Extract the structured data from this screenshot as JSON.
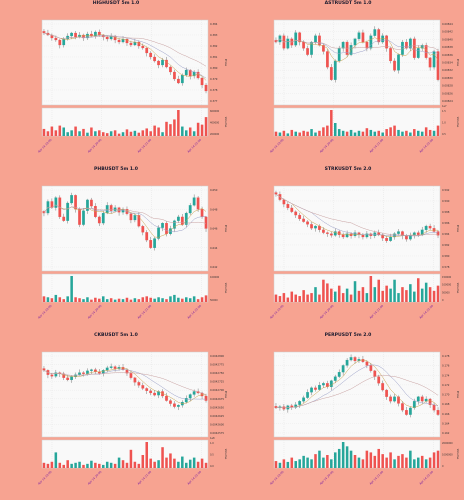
{
  "colors": {
    "background": "#f7a391",
    "axes_bg": "#f9f9f9",
    "up": "#26a69a",
    "down": "#ef5350",
    "wick": "#555555",
    "ma_lines": [
      "#c9a24b",
      "#9aa0c8",
      "#c7a0a0"
    ],
    "tick_label": "#7a1fa2"
  },
  "chart_data": [
    {
      "type": "candlestick",
      "title": "HIGHUSDT 5m 1.0",
      "ylabel": "Price",
      "volume_label": "Volume",
      "ylim": [
        0.376,
        0.3845
      ],
      "y_ticks": [
        "0.384",
        "0.383",
        "0.382",
        "0.381",
        "0.380",
        "0.379",
        "0.378",
        "0.377"
      ],
      "vol_ticks": [
        "600000",
        "400000",
        "200000"
      ],
      "x_ticks": [
        "Apr 14 19:00",
        "Apr 14 20:00",
        "Apr 14 21:00",
        "Apr 14 22:00"
      ],
      "close": [
        0.3832,
        0.383,
        0.3827,
        0.3825,
        0.382,
        0.3826,
        0.3829,
        0.3832,
        0.3828,
        0.383,
        0.3827,
        0.3831,
        0.3829,
        0.3833,
        0.383,
        0.3828,
        0.3826,
        0.3829,
        0.3825,
        0.3823,
        0.3826,
        0.3822,
        0.382,
        0.3823,
        0.3819,
        0.3817,
        0.3812,
        0.3808,
        0.3804,
        0.38,
        0.3805,
        0.3798,
        0.3793,
        0.3786,
        0.3782,
        0.379,
        0.3795,
        0.3789,
        0.3793,
        0.3787,
        0.378,
        0.3774
      ],
      "volume": [
        0.15,
        0.1,
        0.2,
        0.12,
        0.22,
        0.18,
        0.08,
        0.12,
        0.2,
        0.1,
        0.15,
        0.07,
        0.18,
        0.1,
        0.12,
        0.08,
        0.06,
        0.1,
        0.12,
        0.05,
        0.08,
        0.14,
        0.09,
        0.11,
        0.07,
        0.12,
        0.16,
        0.1,
        0.22,
        0.18,
        0.08,
        0.3,
        0.25,
        0.35,
        0.55,
        0.2,
        0.12,
        0.18,
        0.1,
        0.28,
        0.24,
        0.4
      ]
    },
    {
      "type": "candlestick",
      "title": "ASTRUSDT 5m 1.0",
      "ylabel": "Price",
      "volume_label": "Volume",
      "ylim": [
        0.00818,
        0.00845
      ],
      "y_ticks": [
        "0.00844",
        "0.00842",
        "0.00840",
        "0.00838",
        "0.00836",
        "0.00834",
        "0.00832",
        "0.00830",
        "0.00828",
        "0.00826",
        "0.00824"
      ],
      "vol_ticks": [
        "1.5",
        "1.0",
        "0.5"
      ],
      "vol_multiplier": "1e7",
      "x_ticks": [
        "Apr 14 19:00",
        "Apr 14 20:00",
        "Apr 14 21:00",
        "Apr 14 22:00"
      ],
      "close": [
        0.00838,
        0.0084,
        0.00836,
        0.00839,
        0.00837,
        0.00841,
        0.00838,
        0.00836,
        0.00834,
        0.00838,
        0.0084,
        0.00837,
        0.00835,
        0.0083,
        0.00826,
        0.00832,
        0.00836,
        0.00838,
        0.00834,
        0.00837,
        0.00839,
        0.00841,
        0.00838,
        0.00836,
        0.0084,
        0.00842,
        0.00838,
        0.0084,
        0.00836,
        0.00832,
        0.00829,
        0.00834,
        0.00838,
        0.00836,
        0.00839,
        0.00833,
        0.00836,
        0.00837,
        0.00833,
        0.0083,
        0.00835,
        0.00826
      ],
      "volume": [
        0.05,
        0.04,
        0.06,
        0.03,
        0.07,
        0.05,
        0.04,
        0.06,
        0.05,
        0.08,
        0.04,
        0.06,
        0.1,
        0.12,
        0.3,
        0.15,
        0.08,
        0.06,
        0.05,
        0.07,
        0.04,
        0.06,
        0.05,
        0.09,
        0.07,
        0.05,
        0.06,
        0.04,
        0.08,
        0.1,
        0.12,
        0.07,
        0.05,
        0.06,
        0.04,
        0.08,
        0.06,
        0.05,
        0.1,
        0.07,
        0.06,
        0.12
      ]
    },
    {
      "type": "candlestick",
      "title": "PHBUSDT 5m 1.0",
      "ylabel": "Price",
      "volume_label": "Volume",
      "ylim": [
        0.64,
        0.651
      ],
      "y_ticks": [
        "0.650",
        "0.648",
        "0.646",
        "0.644",
        "0.642"
      ],
      "vol_ticks": [
        "100000",
        "50000"
      ],
      "x_ticks": [
        "Apr 14 19:00",
        "Apr 14 20:00",
        "Apr 14 21:00",
        "Apr 14 22:00"
      ],
      "close": [
        0.6475,
        0.649,
        0.6482,
        0.6495,
        0.647,
        0.6465,
        0.6488,
        0.6498,
        0.648,
        0.646,
        0.6478,
        0.6492,
        0.6484,
        0.647,
        0.6462,
        0.6475,
        0.6485,
        0.6478,
        0.6482,
        0.6476,
        0.648,
        0.6474,
        0.6466,
        0.6472,
        0.6458,
        0.645,
        0.644,
        0.643,
        0.6442,
        0.6456,
        0.6462,
        0.6448,
        0.6455,
        0.6465,
        0.647,
        0.646,
        0.6475,
        0.6485,
        0.6495,
        0.648,
        0.647,
        0.6455
      ],
      "volume": [
        0.12,
        0.1,
        0.08,
        0.15,
        0.1,
        0.06,
        0.12,
        0.55,
        0.1,
        0.08,
        0.06,
        0.1,
        0.05,
        0.09,
        0.07,
        0.12,
        0.06,
        0.08,
        0.05,
        0.07,
        0.06,
        0.09,
        0.05,
        0.08,
        0.06,
        0.1,
        0.12,
        0.09,
        0.07,
        0.1,
        0.08,
        0.06,
        0.12,
        0.15,
        0.09,
        0.07,
        0.1,
        0.08,
        0.12,
        0.06,
        0.1,
        0.14
      ]
    },
    {
      "type": "candlestick",
      "title": "STRKUSDT 5m 2.0",
      "ylabel": "Price",
      "volume_label": "Volume",
      "ylim": [
        0.577,
        0.5925
      ],
      "y_ticks": [
        "0.592",
        "0.590",
        "0.588",
        "0.586",
        "0.584",
        "0.582",
        "0.580",
        "0.578"
      ],
      "vol_ticks": [
        "150000",
        "100000",
        "50000",
        "0"
      ],
      "x_ticks": [
        "Apr 14 19:00",
        "Apr 14 20:00",
        "Apr 14 21:00",
        "Apr 14 22:00"
      ],
      "close": [
        0.591,
        0.59,
        0.5892,
        0.5885,
        0.5878,
        0.5872,
        0.5865,
        0.586,
        0.5855,
        0.5848,
        0.5852,
        0.5845,
        0.584,
        0.5838,
        0.5835,
        0.5842,
        0.5836,
        0.5832,
        0.5838,
        0.5834,
        0.584,
        0.5836,
        0.5832,
        0.5838,
        0.5834,
        0.584,
        0.5836,
        0.583,
        0.5825,
        0.5832,
        0.5838,
        0.5842,
        0.5834,
        0.5828,
        0.5835,
        0.584,
        0.5836,
        0.5845,
        0.5852,
        0.5848,
        0.5842,
        0.5835
      ],
      "volume": [
        0.1,
        0.08,
        0.12,
        0.06,
        0.14,
        0.1,
        0.08,
        0.16,
        0.1,
        0.12,
        0.2,
        0.1,
        0.3,
        0.25,
        0.18,
        0.14,
        0.22,
        0.12,
        0.18,
        0.1,
        0.28,
        0.15,
        0.2,
        0.12,
        0.35,
        0.2,
        0.3,
        0.15,
        0.22,
        0.18,
        0.3,
        0.12,
        0.2,
        0.16,
        0.24,
        0.14,
        0.32,
        0.18,
        0.26,
        0.2,
        0.15,
        0.22
      ]
    },
    {
      "type": "candlestick",
      "title": "CKBUSDT 5m 1.0",
      "ylabel": "Price",
      "volume_label": "Volume",
      "ylim": [
        0.004254,
        0.004282
      ],
      "y_ticks": [
        "0.0042800",
        "0.0042775",
        "0.0042750",
        "0.0042725",
        "0.0042700",
        "0.0042675",
        "0.0042650",
        "0.0042625",
        "0.0042600",
        "0.0042575"
      ],
      "vol_ticks": [
        "1.0",
        "0.5",
        "0.0"
      ],
      "vol_multiplier": "1e8",
      "x_ticks": [
        "Apr 14 19:00",
        "Apr 14 20:00",
        "Apr 14 21:00",
        "Apr 14 22:00"
      ],
      "close": [
        0.004276,
        0.0042745,
        0.004274,
        0.0042752,
        0.0042748,
        0.0042735,
        0.0042728,
        0.0042738,
        0.0042745,
        0.0042752,
        0.0042748,
        0.0042758,
        0.0042762,
        0.0042755,
        0.004275,
        0.004276,
        0.0042768,
        0.0042772,
        0.0042765,
        0.004277,
        0.0042762,
        0.004275,
        0.0042735,
        0.004272,
        0.004271,
        0.00427,
        0.0042692,
        0.0042685,
        0.0042678,
        0.004269,
        0.0042675,
        0.004266,
        0.004265,
        0.004264,
        0.0042645,
        0.0042655,
        0.0042668,
        0.004268,
        0.004269,
        0.0042685,
        0.0042675,
        0.004266
      ],
      "volume": [
        0.1,
        0.08,
        0.12,
        0.3,
        0.1,
        0.06,
        0.15,
        0.08,
        0.1,
        0.12,
        0.06,
        0.08,
        0.14,
        0.1,
        0.08,
        0.06,
        0.12,
        0.1,
        0.08,
        0.2,
        0.15,
        0.1,
        0.35,
        0.12,
        0.08,
        0.25,
        0.5,
        0.18,
        0.12,
        0.15,
        0.4,
        0.2,
        0.28,
        0.18,
        0.12,
        0.22,
        0.1,
        0.16,
        0.2,
        0.12,
        0.18,
        0.1
      ]
    },
    {
      "type": "candlestick",
      "title": "PERPUSDT 5m 2.0",
      "ylabel": "Price",
      "volume_label": "Volume",
      "ylim": [
        0.16,
        0.179
      ],
      "y_ticks": [
        "0.178",
        "0.176",
        "0.174",
        "0.172",
        "0.170",
        "0.168",
        "0.166",
        "0.164",
        "0.162"
      ],
      "vol_ticks": [
        "2000000",
        "1000000",
        "0"
      ],
      "x_ticks": [
        "Apr 14 19:00",
        "Apr 14 20:00",
        "Apr 14 21:00",
        "Apr 14 22:00"
      ],
      "close": [
        0.1665,
        0.1668,
        0.1662,
        0.167,
        0.1666,
        0.1672,
        0.168,
        0.1688,
        0.17,
        0.171,
        0.1706,
        0.1716,
        0.172,
        0.1712,
        0.1726,
        0.1735,
        0.1745,
        0.176,
        0.1772,
        0.1778,
        0.177,
        0.1774,
        0.1768,
        0.176,
        0.1748,
        0.1735,
        0.172,
        0.1705,
        0.169,
        0.168,
        0.169,
        0.1675,
        0.166,
        0.165,
        0.1665,
        0.168,
        0.169,
        0.168,
        0.1685,
        0.1672,
        0.166,
        0.165
      ],
      "volume": [
        0.08,
        0.06,
        0.1,
        0.07,
        0.12,
        0.08,
        0.1,
        0.14,
        0.12,
        0.1,
        0.16,
        0.2,
        0.12,
        0.15,
        0.1,
        0.18,
        0.22,
        0.3,
        0.25,
        0.2,
        0.15,
        0.12,
        0.1,
        0.2,
        0.18,
        0.14,
        0.22,
        0.16,
        0.12,
        0.18,
        0.1,
        0.14,
        0.16,
        0.12,
        0.2,
        0.1,
        0.12,
        0.14,
        0.1,
        0.12,
        0.18,
        0.2
      ]
    }
  ]
}
